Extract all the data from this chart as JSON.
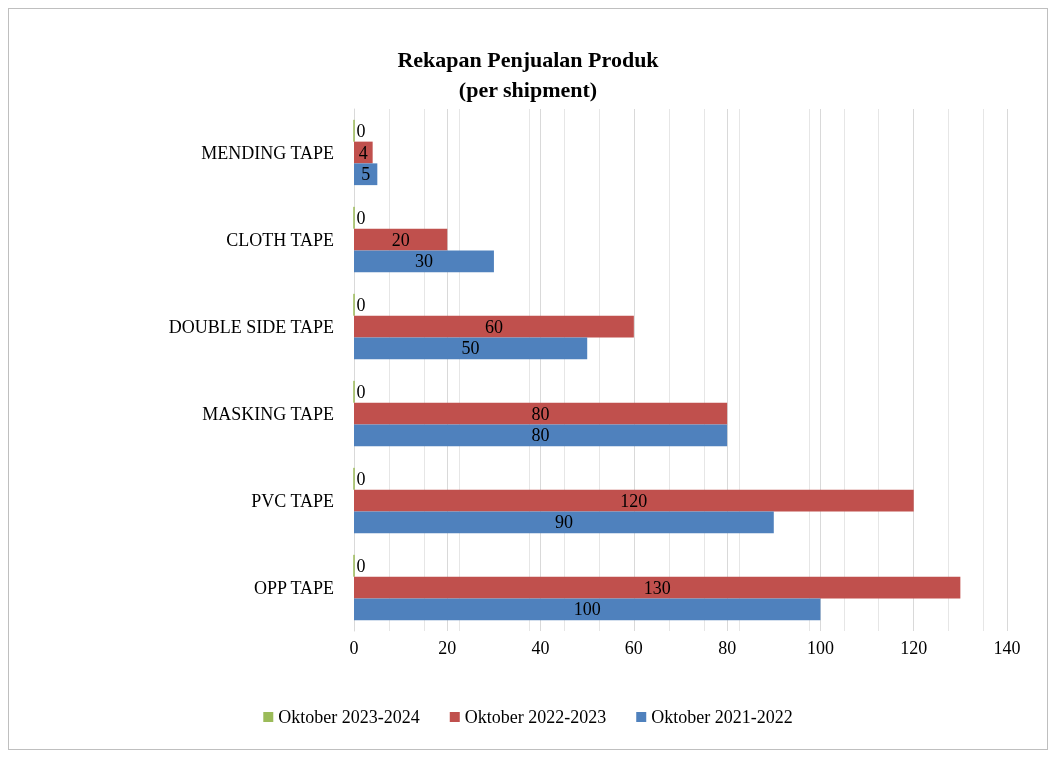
{
  "chart_data": {
    "type": "bar",
    "orientation": "horizontal",
    "title": "Rekapan Penjualan Produk\n(per shipment)",
    "categories": [
      "MENDING TAPE",
      "CLOTH TAPE",
      "DOUBLE SIDE TAPE",
      "MASKING TAPE",
      "PVC TAPE",
      "OPP TAPE"
    ],
    "series": [
      {
        "name": "Oktober 2023-2024",
        "color": "#9bbb59",
        "values": [
          0,
          0,
          0,
          0,
          0,
          0
        ]
      },
      {
        "name": "Oktober 2022-2023",
        "color": "#c0504d",
        "values": [
          4,
          20,
          60,
          80,
          120,
          130
        ]
      },
      {
        "name": "Oktober 2021-2022",
        "color": "#4f81bd",
        "values": [
          5,
          30,
          50,
          80,
          90,
          100
        ]
      }
    ],
    "xlim": [
      0,
      140
    ],
    "xticks": [
      0,
      20,
      40,
      60,
      80,
      100,
      120,
      140
    ],
    "grid": "x",
    "legend": "bottom",
    "data_labels": true
  }
}
